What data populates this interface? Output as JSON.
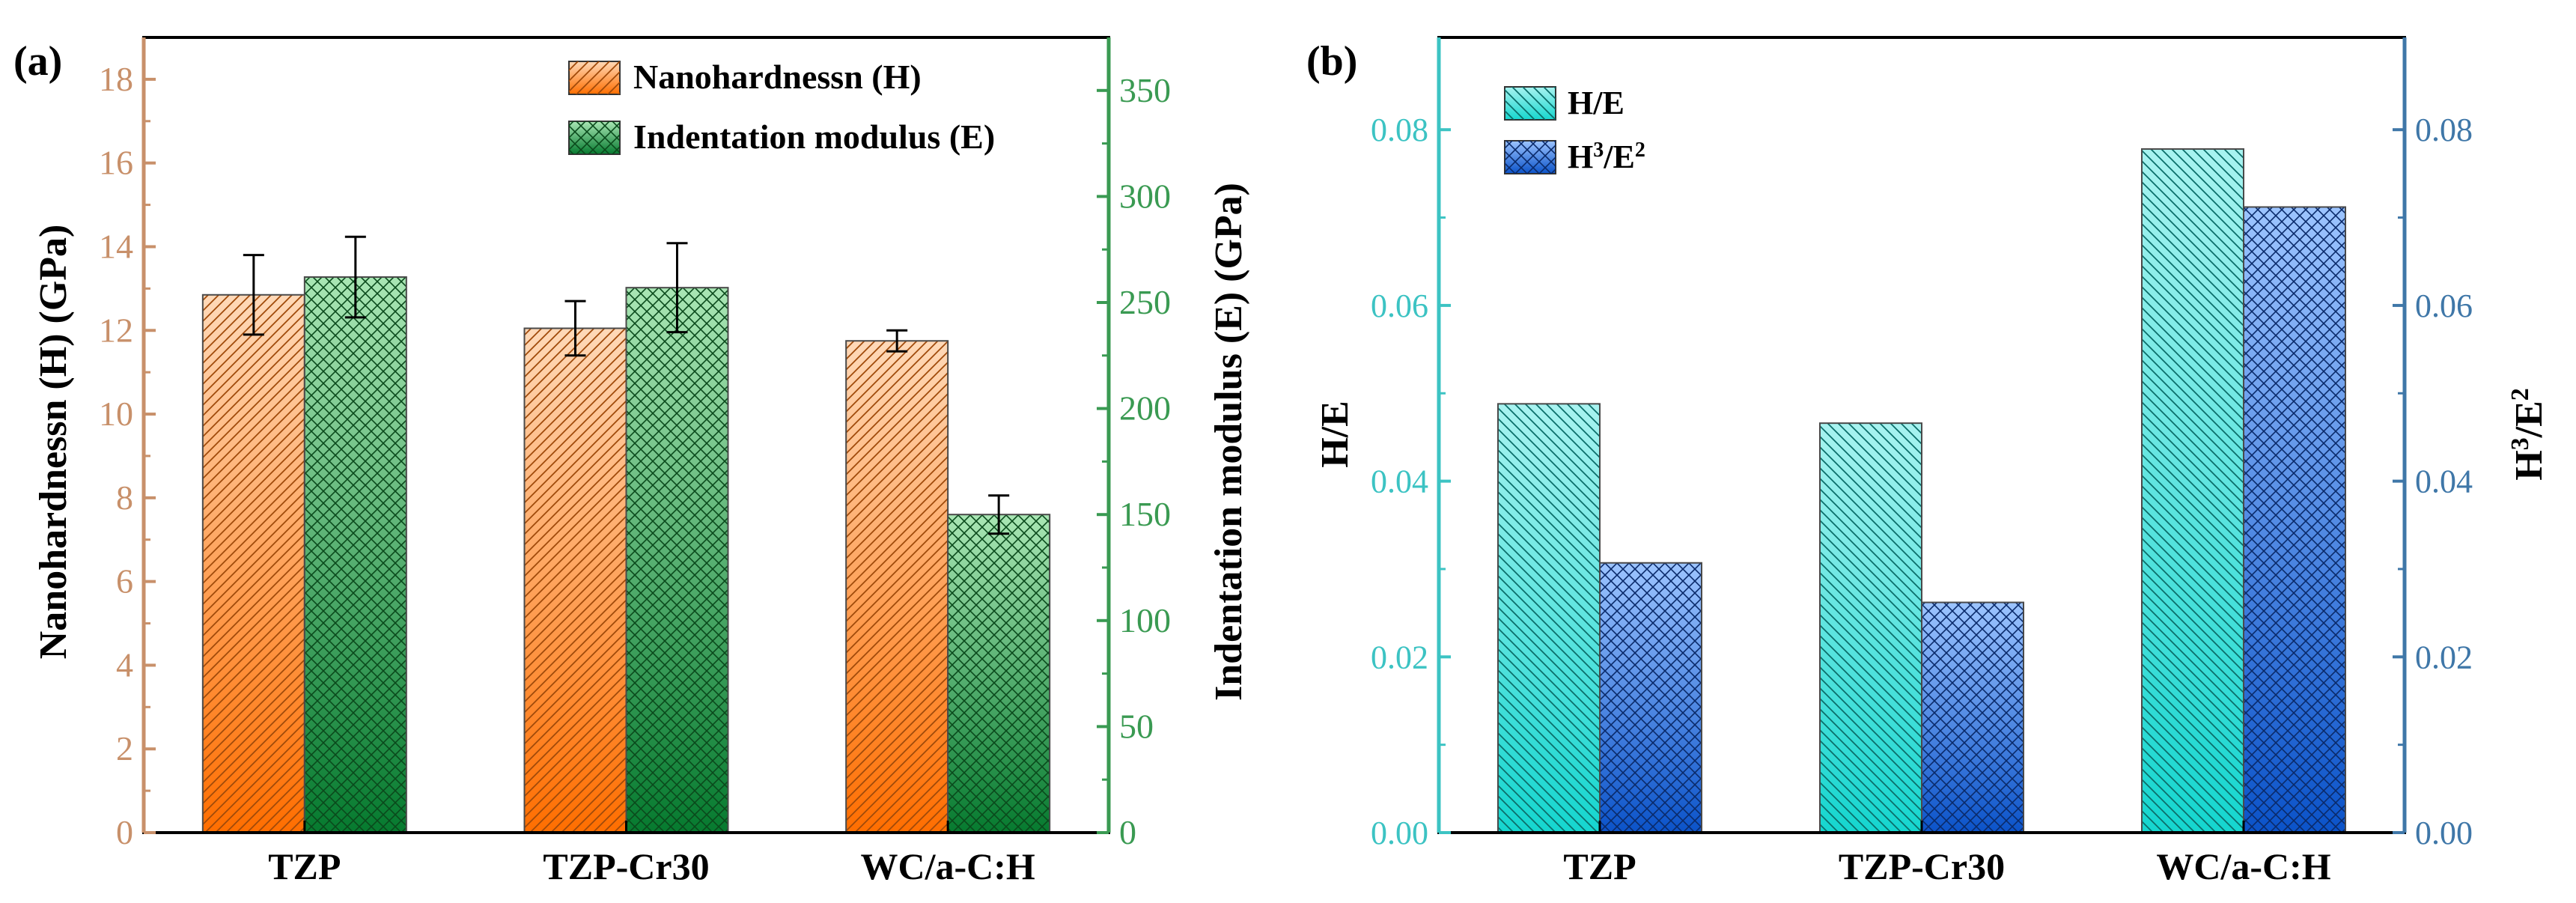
{
  "colors": {
    "nano_top": "#ffd9b8",
    "nano_bottom": "#ff6e00",
    "nano_hatch": "#a04a0a",
    "mod_top": "#a9e6b4",
    "mod_bottom": "#067a2f",
    "mod_hatch": "#0a4a1c",
    "he_top": "#a8f3f0",
    "he_bottom": "#15d6cf",
    "he_hatch": "#0b6e6a",
    "h3_top": "#9cc4ff",
    "h3_bottom": "#0b53c9",
    "h3_hatch": "#0a2a6a",
    "axis_left_a": "#c8906a",
    "axis_right_a": "#3a9a52",
    "axis_left_b": "#3cc3c3",
    "axis_right_b": "#3f77a8",
    "text": "#000000"
  },
  "chart_data": [
    {
      "type": "bar",
      "panel_label": "(a)",
      "categories": [
        "TZP",
        "TZP-Cr30",
        "WC/a-C:H"
      ],
      "series": [
        {
          "name": "Nanohardnessn (H)",
          "axis": "left",
          "values": [
            12.85,
            12.05,
            11.75
          ],
          "errors": [
            0.95,
            0.65,
            0.25
          ]
        },
        {
          "name": "Indentation modulus (E)",
          "axis": "right",
          "values": [
            262,
            257,
            150
          ],
          "errors": [
            19,
            21,
            9
          ]
        }
      ],
      "ylabel_left": "Nanohardnessn (H) (GPa)",
      "ylabel_right": "Indentation modulus (E) (GPa)",
      "ylim_left": [
        0,
        19
      ],
      "ylim_right": [
        0,
        375
      ],
      "yticks_left": [
        0,
        2,
        4,
        6,
        8,
        10,
        12,
        14,
        16,
        18
      ],
      "yticks_right": [
        0,
        50,
        100,
        150,
        200,
        250,
        300,
        350
      ],
      "legend": "top-right",
      "grid": false
    },
    {
      "type": "bar",
      "panel_label": "(b)",
      "categories": [
        "TZP",
        "TZP-Cr30",
        "WC/a-C:H"
      ],
      "series": [
        {
          "name": "H/E",
          "axis": "left",
          "values": [
            0.0488,
            0.0466,
            0.0778
          ]
        },
        {
          "name": "H3/E2",
          "axis": "right",
          "values": [
            0.0307,
            0.0262,
            0.0712
          ]
        }
      ],
      "ylabel_left": "H/E",
      "ylabel_right": "H3/E2",
      "ylim_left": [
        0,
        0.0905
      ],
      "ylim_right": [
        0,
        0.0905
      ],
      "yticks_left": [
        "0.00",
        "0.02",
        "0.04",
        "0.06",
        "0.08"
      ],
      "yticks_right": [
        "0.00",
        "0.02",
        "0.04",
        "0.06",
        "0.08"
      ],
      "legend": "top-left",
      "grid": false
    }
  ]
}
